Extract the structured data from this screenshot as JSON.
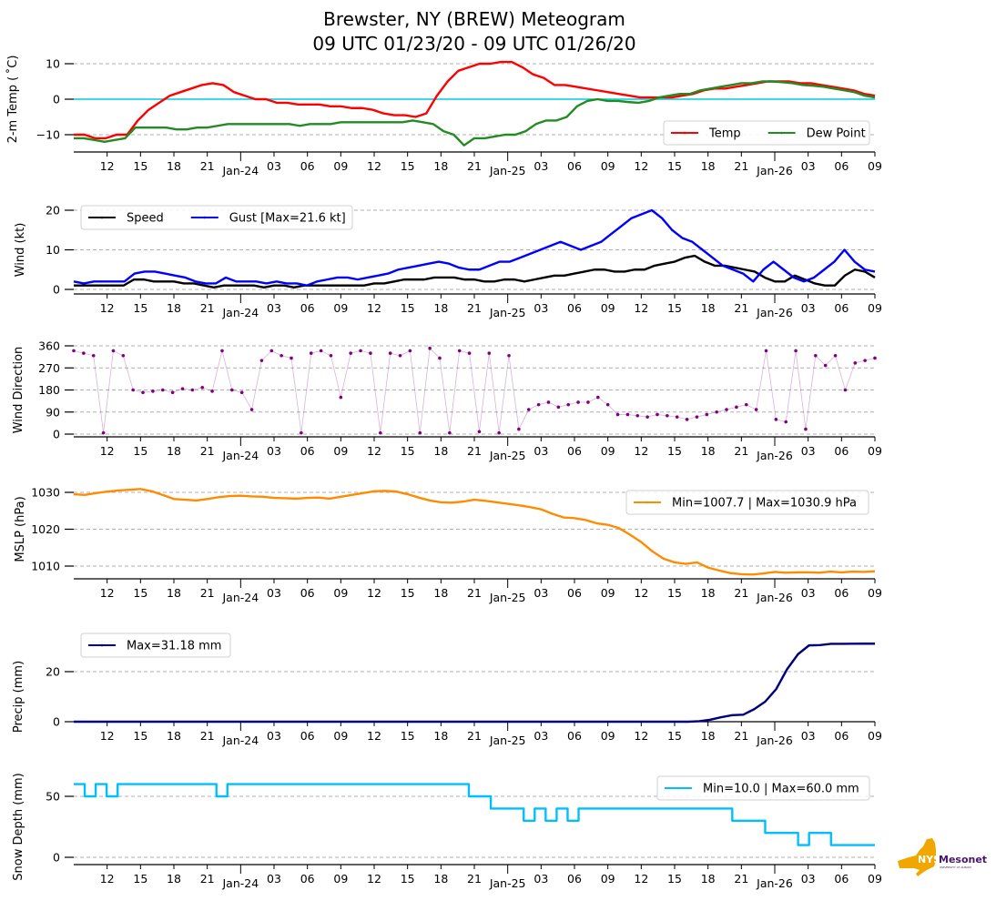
{
  "title_line1": "Brewster, NY (BREW) Meteogram",
  "title_line2": "09 UTC 01/23/20 - 09 UTC 01/26/20",
  "logo": {
    "text_main": "NYS",
    "text_brand": "Mesonet",
    "text_sub": "UNIVERSITY AT ALBANY",
    "state_color": "#f0a800",
    "brand_color": "#46166b"
  },
  "chart_data": [
    {
      "type": "line",
      "id": "temp",
      "ylabel": "2-m Temp ($^\\circ$C)",
      "ylabel_display": "2-m Temp ( ˚C)",
      "yticks": [
        10,
        0,
        -10
      ],
      "ylim": [
        -15,
        13
      ],
      "grid": true,
      "reference_line": {
        "y": 0,
        "color": "#00ccdd"
      },
      "legend_placement": "lower-right",
      "x_hours_from_start": "0..72 hourly",
      "series": [
        {
          "name": "Temp",
          "color": "#ff0000",
          "values": [
            -10,
            -10,
            -11,
            -11,
            -10,
            -10,
            -6,
            -3,
            -1,
            1,
            2,
            3,
            4,
            4.5,
            4,
            2,
            1,
            0,
            0,
            -1,
            -1,
            -1.5,
            -1.5,
            -1.5,
            -2,
            -2,
            -2.5,
            -2.5,
            -3,
            -4,
            -4.5,
            -4.5,
            -5,
            -4,
            1,
            5,
            8,
            9,
            10,
            10,
            10.5,
            10.5,
            9,
            7,
            6,
            4,
            4,
            3.5,
            3,
            2.5,
            2,
            1.5,
            1,
            0.5,
            0.5,
            0.5,
            0.5,
            1,
            1.5,
            2.5,
            3,
            3,
            3.5,
            4,
            4.5,
            5,
            5,
            5,
            4.5,
            4.5,
            4,
            3.5,
            3,
            2.5,
            1.5,
            1
          ]
        },
        {
          "name": "Dew Point",
          "color": "#228b22",
          "values": [
            -11,
            -11,
            -11.5,
            -12,
            -11.5,
            -11,
            -8,
            -8,
            -8,
            -8,
            -8.5,
            -8.5,
            -8,
            -8,
            -7.5,
            -7,
            -7,
            -7,
            -7,
            -7,
            -7,
            -7,
            -7.5,
            -7,
            -7,
            -7,
            -6.5,
            -6.5,
            -6.5,
            -6.5,
            -6.5,
            -6.5,
            -6.5,
            -6,
            -6.5,
            -7,
            -9,
            -10,
            -13,
            -11,
            -11,
            -10.5,
            -10,
            -10,
            -9,
            -7,
            -6,
            -6,
            -5,
            -2,
            -0.5,
            0,
            -0.5,
            -0.5,
            -0.8,
            -1,
            -0.5,
            0.5,
            1,
            1.5,
            1.5,
            2.5,
            3,
            3.5,
            4,
            4.5,
            4.5,
            5,
            5,
            4.8,
            4.5,
            4,
            3.8,
            3.5,
            3,
            2.5,
            2,
            1,
            0.5
          ]
        }
      ],
      "legend_entries": [
        "Temp",
        "Dew Point"
      ]
    },
    {
      "type": "line",
      "id": "wind",
      "ylabel": "Wind (kt)",
      "yticks": [
        20,
        10,
        0
      ],
      "ylim": [
        -0.5,
        23
      ],
      "grid": true,
      "legend_placement": "upper-left",
      "series": [
        {
          "name": "Speed",
          "color": "#000000",
          "values": [
            1,
            1,
            1,
            1,
            1,
            1,
            2.5,
            2.5,
            2,
            2,
            2,
            1.5,
            1.5,
            1,
            0.5,
            1,
            1,
            1,
            1,
            0.5,
            1,
            1,
            0.5,
            1,
            1,
            1,
            1,
            1,
            1,
            1,
            1.5,
            1.5,
            2,
            2.5,
            2.5,
            2.5,
            3,
            3,
            3,
            2.5,
            2.5,
            2,
            2,
            2.5,
            2.5,
            2,
            2.5,
            3,
            3.5,
            3.5,
            4,
            4.5,
            5,
            5,
            4.5,
            4.5,
            5,
            5,
            6,
            6.5,
            7,
            8,
            8.5,
            7,
            6,
            6,
            5.5,
            5,
            4.5,
            3,
            2,
            2,
            3.5,
            2.5,
            1.5,
            1,
            1,
            3.5,
            5,
            4.5,
            3
          ]
        },
        {
          "name": "Gust",
          "color": "#0000ff",
          "values": [
            2,
            1.5,
            2,
            2,
            2,
            2,
            4,
            4.5,
            4.5,
            4,
            3.5,
            3,
            2,
            1.5,
            1.5,
            3,
            2,
            2,
            2,
            1.5,
            2,
            1.5,
            1.5,
            1,
            2,
            2.5,
            3,
            3,
            2.5,
            3,
            3.5,
            4,
            5,
            5.5,
            6,
            6.5,
            7,
            6.5,
            5.5,
            5,
            5,
            6,
            7,
            7,
            8,
            9,
            10,
            11,
            12,
            11,
            10,
            11,
            12,
            14,
            16,
            18,
            19,
            20,
            18,
            15,
            13,
            12,
            10,
            8,
            6,
            5,
            4,
            2,
            5,
            7,
            5,
            3,
            2,
            3,
            5,
            7,
            10,
            7,
            5,
            4.5
          ]
        }
      ],
      "legend_entries": [
        "Speed",
        "Gust [Max=21.6 kt]"
      ],
      "gust_max_kt": 21.6
    },
    {
      "type": "scatter",
      "id": "wind_direction",
      "ylabel": "Wind Direction",
      "yticks": [
        360,
        270,
        180,
        90,
        0
      ],
      "ylim": [
        -5,
        365
      ],
      "grid": true,
      "series": [
        {
          "name": "Wind Direction",
          "color": "#800080",
          "values": [
            340,
            330,
            320,
            5,
            340,
            320,
            180,
            170,
            175,
            180,
            170,
            185,
            180,
            190,
            175,
            340,
            180,
            170,
            100,
            300,
            340,
            320,
            310,
            5,
            330,
            340,
            320,
            150,
            330,
            340,
            330,
            5,
            330,
            320,
            340,
            5,
            350,
            310,
            5,
            340,
            330,
            10,
            330,
            5,
            320,
            20,
            100,
            120,
            130,
            110,
            120,
            130,
            130,
            150,
            120,
            80,
            80,
            75,
            70,
            80,
            75,
            70,
            60,
            70,
            80,
            90,
            100,
            110,
            120,
            100,
            340,
            60,
            50,
            340,
            20,
            320,
            280,
            320,
            180,
            290,
            300,
            310
          ]
        }
      ],
      "legend_entries": []
    },
    {
      "type": "line",
      "id": "mslp",
      "ylabel": "MSLP (hPa)",
      "yticks": [
        1030,
        1020,
        1010
      ],
      "ylim": [
        1006.5,
        1032
      ],
      "grid": true,
      "legend_placement": "upper-right",
      "series": [
        {
          "name": "MSLP",
          "color": "#ff8c00",
          "values": [
            1029.5,
            1029.3,
            1029.8,
            1030.2,
            1030.5,
            1030.7,
            1030.9,
            1030.3,
            1029.3,
            1028.2,
            1028,
            1027.8,
            1028.2,
            1028.7,
            1029,
            1029.1,
            1028.9,
            1028.8,
            1028.5,
            1028.4,
            1028.3,
            1028.5,
            1028.6,
            1028.3,
            1028.8,
            1029.3,
            1029.8,
            1030.3,
            1030.4,
            1030.2,
            1029.5,
            1028.6,
            1027.8,
            1027.3,
            1027.2,
            1027.5,
            1028,
            1027.7,
            1027.3,
            1026.9,
            1026.5,
            1026,
            1025.4,
            1024.2,
            1023.2,
            1023,
            1022.5,
            1021.6,
            1021.2,
            1020.3,
            1018.5,
            1016.5,
            1014,
            1012,
            1011,
            1010.6,
            1011,
            1009.6,
            1008.8,
            1008.1,
            1007.8,
            1007.7,
            1008,
            1008.4,
            1008.2,
            1008.3,
            1008.3,
            1008.2,
            1008.5,
            1008.3,
            1008.5,
            1008.4,
            1008.6
          ]
        }
      ],
      "legend_entries": [
        "Min=1007.7 | Max=1030.9 hPa"
      ],
      "min": 1007.7,
      "max": 1030.9
    },
    {
      "type": "line",
      "id": "precip",
      "ylabel": "Precip (mm)",
      "yticks": [
        20,
        0
      ],
      "ylim": [
        0,
        34
      ],
      "grid": true,
      "legend_placement": "upper-left",
      "series": [
        {
          "name": "Precip",
          "color": "#00007f",
          "values": [
            0,
            0,
            0,
            0,
            0,
            0,
            0,
            0,
            0,
            0,
            0,
            0,
            0,
            0,
            0,
            0,
            0,
            0,
            0,
            0,
            0,
            0,
            0,
            0,
            0,
            0,
            0,
            0,
            0,
            0,
            0,
            0,
            0,
            0,
            0,
            0,
            0,
            0,
            0,
            0,
            0,
            0,
            0,
            0,
            0,
            0,
            0,
            0,
            0,
            0,
            0,
            0,
            0,
            0,
            0,
            0,
            0,
            0.2,
            0.8,
            1.8,
            2.6,
            2.8,
            5,
            8,
            13,
            21,
            27,
            30.5,
            30.6,
            31.1,
            31.1,
            31.15,
            31.18,
            31.18
          ]
        }
      ],
      "legend_entries": [
        "Max=31.18 mm"
      ],
      "max": 31.18
    },
    {
      "type": "line",
      "id": "snow_depth",
      "ylabel": "Snow Depth (mm)",
      "yticks": [
        50,
        0
      ],
      "ylim": [
        -5,
        75
      ],
      "grid": true,
      "legend_placement": "upper-right",
      "series": [
        {
          "name": "Snow Depth",
          "color": "#00bfff",
          "values": [
            60,
            50,
            60,
            50,
            60,
            60,
            60,
            60,
            60,
            60,
            60,
            60,
            60,
            50,
            60,
            60,
            60,
            60,
            60,
            60,
            60,
            60,
            60,
            60,
            60,
            60,
            60,
            60,
            60,
            60,
            60,
            60,
            60,
            60,
            60,
            60,
            50,
            50,
            40,
            40,
            40,
            30,
            40,
            30,
            40,
            30,
            40,
            40,
            40,
            40,
            40,
            40,
            40,
            40,
            40,
            40,
            40,
            40,
            40,
            40,
            30,
            30,
            30,
            20,
            20,
            20,
            10,
            20,
            20,
            10,
            10,
            10,
            10,
            10
          ]
        }
      ],
      "legend_entries": [
        "Min=10.0 | Max=60.0 mm"
      ],
      "min": 10.0,
      "max": 60.0
    }
  ],
  "x_axis": {
    "start": "09 UTC 01/23/20",
    "end": "09 UTC 01/26/20",
    "hours": 72,
    "minor_tick_labels": [
      {
        "h": 3,
        "label": "12"
      },
      {
        "h": 6,
        "label": "15"
      },
      {
        "h": 9,
        "label": "18"
      },
      {
        "h": 12,
        "label": "21"
      },
      {
        "h": 18,
        "label": "03"
      },
      {
        "h": 21,
        "label": "06"
      },
      {
        "h": 24,
        "label": "09"
      },
      {
        "h": 27,
        "label": "12"
      },
      {
        "h": 30,
        "label": "15"
      },
      {
        "h": 33,
        "label": "18"
      },
      {
        "h": 36,
        "label": "21"
      },
      {
        "h": 42,
        "label": "03"
      },
      {
        "h": 45,
        "label": "06"
      },
      {
        "h": 48,
        "label": "09"
      },
      {
        "h": 51,
        "label": "12"
      },
      {
        "h": 54,
        "label": "15"
      },
      {
        "h": 57,
        "label": "18"
      },
      {
        "h": 60,
        "label": "21"
      },
      {
        "h": 66,
        "label": "03"
      },
      {
        "h": 69,
        "label": "06"
      },
      {
        "h": 72,
        "label": "09"
      }
    ],
    "major_tick_labels": [
      {
        "h": 15,
        "label": "Jan-24"
      },
      {
        "h": 39,
        "label": "Jan-25"
      },
      {
        "h": 63,
        "label": "Jan-26"
      }
    ]
  }
}
